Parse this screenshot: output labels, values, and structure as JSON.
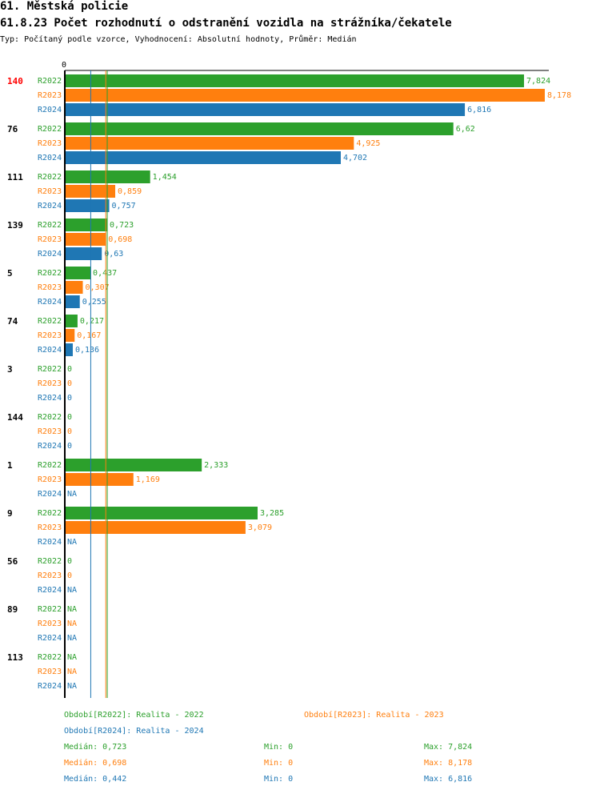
{
  "header": {
    "title": "61. Městská policie",
    "subtitle_title": "61.8.23 Počet rozhodnutí o odstranění vozidla na strážníka/čekatele",
    "type_line": "Typ: Počítaný podle vzorce, Vyhodnocení: Absolutní hodnoty, Průměr: Medián"
  },
  "colors": {
    "R2022": "#2ca02c",
    "R2023": "#ff7f0e",
    "R2024": "#1f77b4",
    "highlight": "#ff0000"
  },
  "chart_data": {
    "type": "bar",
    "orientation": "horizontal",
    "axis_zero_label": "0",
    "xlim": [
      0,
      8.178
    ],
    "series_names": [
      "R2022",
      "R2023",
      "R2024"
    ],
    "median_lines": [
      0.723,
      0.698,
      0.442
    ],
    "groups": [
      {
        "label": "140",
        "highlight": true,
        "values": [
          7.824,
          8.178,
          6.816
        ],
        "labels": [
          "7,824",
          "8,178",
          "6,816"
        ]
      },
      {
        "label": "76",
        "highlight": false,
        "values": [
          6.62,
          4.925,
          4.702
        ],
        "labels": [
          "6,62",
          "4,925",
          "4,702"
        ]
      },
      {
        "label": "111",
        "highlight": false,
        "values": [
          1.454,
          0.859,
          0.757
        ],
        "labels": [
          "1,454",
          "0,859",
          "0,757"
        ]
      },
      {
        "label": "139",
        "highlight": false,
        "values": [
          0.723,
          0.698,
          0.63
        ],
        "labels": [
          "0,723",
          "0,698",
          "0,63"
        ]
      },
      {
        "label": "5",
        "highlight": false,
        "values": [
          0.437,
          0.307,
          0.255
        ],
        "labels": [
          "0,437",
          "0,307",
          "0,255"
        ]
      },
      {
        "label": "74",
        "highlight": false,
        "values": [
          0.217,
          0.167,
          0.136
        ],
        "labels": [
          "0,217",
          "0,167",
          "0,136"
        ]
      },
      {
        "label": "3",
        "highlight": false,
        "values": [
          0,
          0,
          0
        ],
        "labels": [
          "0",
          "0",
          "0"
        ]
      },
      {
        "label": "144",
        "highlight": false,
        "values": [
          0,
          0,
          0
        ],
        "labels": [
          "0",
          "0",
          "0"
        ]
      },
      {
        "label": "1",
        "highlight": false,
        "values": [
          2.333,
          1.169,
          null
        ],
        "labels": [
          "2,333",
          "1,169",
          "NA"
        ]
      },
      {
        "label": "9",
        "highlight": false,
        "values": [
          3.285,
          3.079,
          null
        ],
        "labels": [
          "3,285",
          "3,079",
          "NA"
        ]
      },
      {
        "label": "56",
        "highlight": false,
        "values": [
          0,
          0,
          null
        ],
        "labels": [
          "0",
          "0",
          "NA"
        ]
      },
      {
        "label": "89",
        "highlight": false,
        "values": [
          null,
          null,
          null
        ],
        "labels": [
          "NA",
          "NA",
          "NA"
        ]
      },
      {
        "label": "113",
        "highlight": false,
        "values": [
          null,
          null,
          null
        ],
        "labels": [
          "NA",
          "NA",
          "NA"
        ]
      }
    ]
  },
  "legend": {
    "r2022": "Období[R2022]: Realita - 2022",
    "r2023": "Období[R2023]: Realita - 2023",
    "r2024": "Období[R2024]: Realita - 2024"
  },
  "stats": [
    {
      "median": "Medián: 0,723",
      "min": "Min: 0",
      "max": "Max: 7,824"
    },
    {
      "median": "Medián: 0,698",
      "min": "Min: 0",
      "max": "Max: 8,178"
    },
    {
      "median": "Medián: 0,442",
      "min": "Min: 0",
      "max": "Max: 6,816"
    }
  ]
}
